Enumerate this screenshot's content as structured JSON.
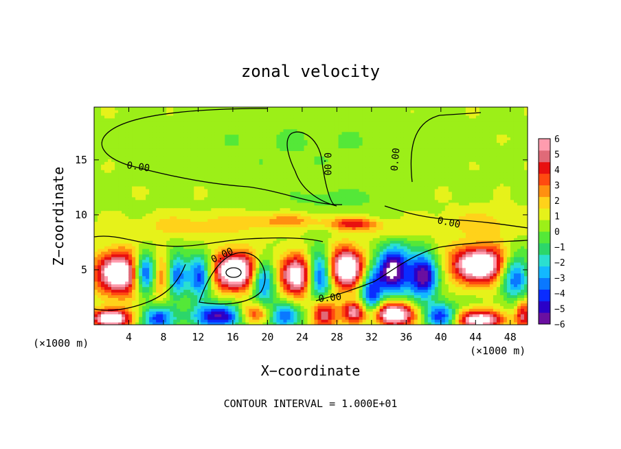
{
  "chart_data": {
    "type": "heatmap",
    "title": "zonal velocity",
    "xlabel": "X−coordinate",
    "ylabel": "Z−coordinate",
    "x_unit_left": "(×1000 m)",
    "x_unit_right": "(×1000 m)",
    "footer": "CONTOUR INTERVAL = 1.000E+01",
    "xlim": [
      0,
      50
    ],
    "ylim": [
      0,
      19.8
    ],
    "x_ticks": [
      "4",
      "8",
      "12",
      "16",
      "20",
      "24",
      "28",
      "32",
      "36",
      "40",
      "44",
      "48"
    ],
    "y_ticks": [
      "5",
      "10",
      "15"
    ],
    "colorbar": {
      "min": -6,
      "max": 6,
      "ticks": [
        "6",
        "5",
        "4",
        "3",
        "2",
        "1",
        "0",
        "−1",
        "−2",
        "−3",
        "−4",
        "−5",
        "−6"
      ],
      "colors": [
        "#6a0fa0",
        "#2a00c8",
        "#0a2cff",
        "#0a78ff",
        "#13b8ff",
        "#2bdfd0",
        "#2cd66a",
        "#54e838",
        "#9cef18",
        "#e6f21a",
        "#ffd21a",
        "#ff9010",
        "#ff4a10",
        "#e81010",
        "#e06a78",
        "#ff9cae"
      ]
    },
    "contour_labels": [
      "0.00",
      "0.00",
      "0.00",
      "0.00",
      "0.00",
      "0.00"
    ],
    "background_value": 0.6,
    "features": [
      {
        "kind": "jet",
        "cx": 3.0,
        "cz": 4.7,
        "rx": 3.0,
        "rz": 2.1,
        "v": 7.5
      },
      {
        "kind": "jet",
        "cx": 6.0,
        "cz": 4.7,
        "rx": 1.6,
        "rz": 2.0,
        "v": -7.0
      },
      {
        "kind": "jet",
        "cx": 7.5,
        "cz": 4.5,
        "rx": 1.3,
        "rz": 2.3,
        "v": 3.5
      },
      {
        "kind": "jet",
        "cx": 9.5,
        "cz": 4.5,
        "rx": 1.2,
        "rz": 2.0,
        "v": -4.5
      },
      {
        "kind": "jet",
        "cx": 12.2,
        "cz": 4.4,
        "rx": 1.5,
        "rz": 2.3,
        "v": -5.0
      },
      {
        "kind": "jet",
        "cx": 16.3,
        "cz": 4.9,
        "rx": 3.0,
        "rz": 1.9,
        "v": 7.5
      },
      {
        "kind": "jet",
        "cx": 19.5,
        "cz": 4.0,
        "rx": 1.5,
        "rz": 2.2,
        "v": -5.0
      },
      {
        "kind": "jet",
        "cx": 23.5,
        "cz": 4.5,
        "rx": 2.2,
        "rz": 2.1,
        "v": 6.5
      },
      {
        "kind": "jet",
        "cx": 26.0,
        "cz": 4.5,
        "rx": 1.6,
        "rz": 2.6,
        "v": -6.0
      },
      {
        "kind": "jet",
        "cx": 29.0,
        "cz": 5.2,
        "rx": 2.3,
        "rz": 2.0,
        "v": 7.5
      },
      {
        "kind": "jet",
        "cx": 32.0,
        "cz": 2.8,
        "rx": 1.4,
        "rz": 2.3,
        "v": -5.0
      },
      {
        "kind": "jet",
        "cx": 34.5,
        "cz": 5.0,
        "rx": 2.0,
        "rz": 2.4,
        "v": -7.0
      },
      {
        "kind": "jet",
        "cx": 38.0,
        "cz": 4.5,
        "rx": 1.8,
        "rz": 2.2,
        "v": -6.5
      },
      {
        "kind": "jet",
        "cx": 44.5,
        "cz": 5.5,
        "rx": 3.6,
        "rz": 1.8,
        "v": 7.5
      },
      {
        "kind": "jet",
        "cx": 48.5,
        "cz": 4.5,
        "rx": 1.8,
        "rz": 2.3,
        "v": -5.0
      },
      {
        "kind": "jet",
        "cx": 2.0,
        "cz": 0.6,
        "rx": 2.5,
        "rz": 0.9,
        "v": 7.0
      },
      {
        "kind": "jet",
        "cx": 7.5,
        "cz": 0.6,
        "rx": 2.0,
        "rz": 1.2,
        "v": -5.0
      },
      {
        "kind": "jet",
        "cx": 14.5,
        "cz": 0.8,
        "rx": 3.2,
        "rz": 1.2,
        "v": -6.0
      },
      {
        "kind": "jet",
        "cx": 18.5,
        "cz": 1.0,
        "rx": 2.0,
        "rz": 1.0,
        "v": 4.0
      },
      {
        "kind": "jet",
        "cx": 22.0,
        "cz": 0.8,
        "rx": 2.0,
        "rz": 1.3,
        "v": -4.5
      },
      {
        "kind": "jet",
        "cx": 26.5,
        "cz": 1.0,
        "rx": 1.6,
        "rz": 1.5,
        "v": 5.0
      },
      {
        "kind": "jet",
        "cx": 30.0,
        "cz": 1.2,
        "rx": 1.5,
        "rz": 1.1,
        "v": 5.0
      },
      {
        "kind": "jet",
        "cx": 34.5,
        "cz": 1.0,
        "rx": 2.6,
        "rz": 1.2,
        "v": 7.5
      },
      {
        "kind": "jet",
        "cx": 40.0,
        "cz": 0.8,
        "rx": 2.0,
        "rz": 1.3,
        "v": -5.0
      },
      {
        "kind": "jet",
        "cx": 44.5,
        "cz": 0.5,
        "rx": 3.0,
        "rz": 0.9,
        "v": 6.5
      },
      {
        "kind": "jet",
        "cx": 49.5,
        "cz": 1.0,
        "rx": 1.0,
        "rz": 1.5,
        "v": 4.0
      },
      {
        "kind": "band",
        "cx": 22.0,
        "cz": 9.5,
        "rx": 5.0,
        "rz": 0.7,
        "v": 1.8
      },
      {
        "kind": "band",
        "cx": 30.0,
        "cz": 9.2,
        "rx": 3.0,
        "rz": 0.6,
        "v": 3.5
      },
      {
        "kind": "band",
        "cx": 35.0,
        "cz": 8.5,
        "rx": 3.5,
        "rz": 0.8,
        "v": 1.2
      },
      {
        "kind": "band",
        "cx": 28.0,
        "cz": 11.5,
        "rx": 6.0,
        "rz": 1.0,
        "v": -1.0
      },
      {
        "kind": "band",
        "cx": 12.0,
        "cz": 9.0,
        "rx": 8.0,
        "rz": 1.2,
        "v": 1.3
      },
      {
        "kind": "band",
        "cx": 45.0,
        "cz": 9.3,
        "rx": 6.0,
        "rz": 1.4,
        "v": 1.2
      },
      {
        "kind": "band",
        "cx": 24.0,
        "cz": 16.5,
        "rx": 16.0,
        "rz": 3.0,
        "v": -0.6
      }
    ]
  }
}
